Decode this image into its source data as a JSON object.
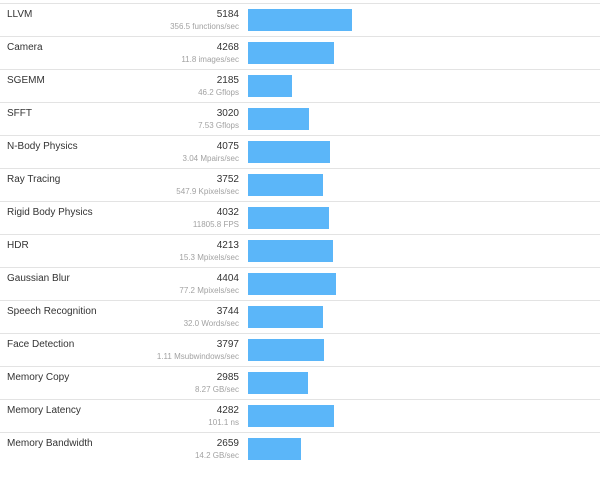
{
  "bar_color": "#5bb6f9",
  "bar_scale_max": 5184,
  "benchmarks": [
    {
      "name": "LLVM",
      "score": "5184",
      "rate": "356.5 functions/sec",
      "value": 5184
    },
    {
      "name": "Camera",
      "score": "4268",
      "rate": "11.8 images/sec",
      "value": 4268
    },
    {
      "name": "SGEMM",
      "score": "2185",
      "rate": "46.2 Gflops",
      "value": 2185
    },
    {
      "name": "SFFT",
      "score": "3020",
      "rate": "7.53 Gflops",
      "value": 3020
    },
    {
      "name": "N-Body Physics",
      "score": "4075",
      "rate": "3.04 Mpairs/sec",
      "value": 4075
    },
    {
      "name": "Ray Tracing",
      "score": "3752",
      "rate": "547.9 Kpixels/sec",
      "value": 3752
    },
    {
      "name": "Rigid Body Physics",
      "score": "4032",
      "rate": "11805.8 FPS",
      "value": 4032
    },
    {
      "name": "HDR",
      "score": "4213",
      "rate": "15.3 Mpixels/sec",
      "value": 4213
    },
    {
      "name": "Gaussian Blur",
      "score": "4404",
      "rate": "77.2 Mpixels/sec",
      "value": 4404
    },
    {
      "name": "Speech Recognition",
      "score": "3744",
      "rate": "32.0 Words/sec",
      "value": 3744
    },
    {
      "name": "Face Detection",
      "score": "3797",
      "rate": "1.11 Msubwindows/sec",
      "value": 3797
    },
    {
      "name": "Memory Copy",
      "score": "2985",
      "rate": "8.27 GB/sec",
      "value": 2985
    },
    {
      "name": "Memory Latency",
      "score": "4282",
      "rate": "101.1 ns",
      "value": 4282
    },
    {
      "name": "Memory Bandwidth",
      "score": "2659",
      "rate": "14.2 GB/sec",
      "value": 2659
    }
  ]
}
